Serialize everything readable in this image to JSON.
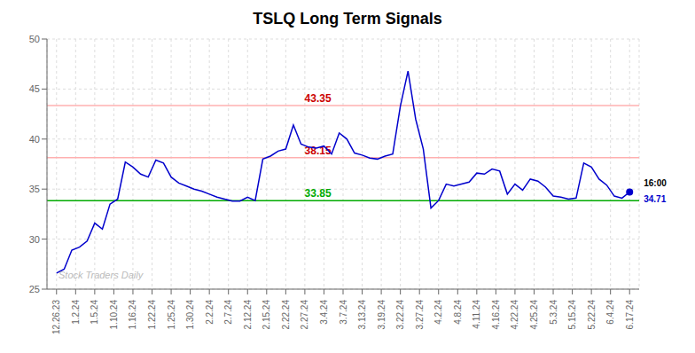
{
  "chart_data": {
    "type": "line",
    "title": "TSLQ Long Term Signals",
    "x": [
      0,
      0.4,
      0.8,
      1.2,
      1.6,
      2,
      2.4,
      2.8,
      3.2,
      3.6,
      4,
      4.4,
      4.8,
      5.2,
      5.6,
      6,
      6.4,
      6.8,
      7.2,
      7.6,
      8,
      8.4,
      8.8,
      9.2,
      9.6,
      10,
      10.4,
      10.8,
      11.2,
      11.6,
      12,
      12.4,
      12.8,
      13.2,
      13.6,
      14,
      14.4,
      14.8,
      15.2,
      15.6,
      16,
      16.4,
      16.8,
      17.2,
      17.6,
      18,
      18.4,
      18.8,
      19.2,
      19.6,
      20,
      20.4,
      20.8,
      21.2,
      21.6,
      22,
      22.4,
      22.8,
      23.2,
      23.6,
      24,
      24.4,
      24.8,
      25.2,
      25.6,
      26,
      26.4,
      26.8,
      27.2,
      27.6,
      28,
      28.4,
      28.8,
      29.2,
      29.6,
      30
    ],
    "values": [
      26.6,
      27.0,
      28.9,
      29.2,
      29.8,
      31.6,
      31.0,
      33.5,
      34.0,
      37.7,
      37.2,
      36.5,
      36.2,
      37.9,
      37.6,
      36.2,
      35.6,
      35.3,
      35.0,
      34.8,
      34.5,
      34.2,
      34.0,
      33.8,
      33.8,
      34.2,
      33.85,
      38.0,
      38.3,
      38.8,
      39.0,
      41.4,
      39.5,
      39.2,
      39.1,
      39.3,
      38.5,
      40.6,
      40.0,
      38.6,
      38.4,
      38.1,
      38.0,
      38.3,
      38.5,
      43.3,
      46.8,
      42.0,
      39.0,
      33.1,
      33.85,
      35.5,
      35.3,
      35.5,
      35.7,
      36.6,
      36.5,
      37.0,
      36.8,
      34.5,
      35.5,
      34.9,
      36.0,
      35.8,
      35.2,
      34.3,
      34.2,
      34.0,
      34.1,
      37.6,
      37.2,
      36.0,
      35.4,
      34.3,
      34.1,
      34.71
    ],
    "color": "#0000cc",
    "xlim": [
      -0.5,
      30.5
    ],
    "xticks": [
      {
        "value": 0,
        "label": "12.26.23"
      },
      {
        "value": 1,
        "label": "1.2.24"
      },
      {
        "value": 2,
        "label": "1.5.24"
      },
      {
        "value": 3,
        "label": "1.10.24"
      },
      {
        "value": 4,
        "label": "1.16.24"
      },
      {
        "value": 5,
        "label": "1.22.24"
      },
      {
        "value": 6,
        "label": "1.25.24"
      },
      {
        "value": 7,
        "label": "1.30.24"
      },
      {
        "value": 8,
        "label": "2.2.24"
      },
      {
        "value": 9,
        "label": "2.7.24"
      },
      {
        "value": 10,
        "label": "2.12.24"
      },
      {
        "value": 11,
        "label": "2.15.24"
      },
      {
        "value": 12,
        "label": "2.22.24"
      },
      {
        "value": 13,
        "label": "2.27.24"
      },
      {
        "value": 14,
        "label": "3.4.24"
      },
      {
        "value": 15,
        "label": "3.7.24"
      },
      {
        "value": 16,
        "label": "3.13.24"
      },
      {
        "value": 17,
        "label": "3.19.24"
      },
      {
        "value": 18,
        "label": "3.22.24"
      },
      {
        "value": 19,
        "label": "3.27.24"
      },
      {
        "value": 20,
        "label": "4.2.24"
      },
      {
        "value": 21,
        "label": "4.8.24"
      },
      {
        "value": 22,
        "label": "4.11.24"
      },
      {
        "value": 23,
        "label": "4.16.24"
      },
      {
        "value": 24,
        "label": "4.22.24"
      },
      {
        "value": 25,
        "label": "4.25.24"
      },
      {
        "value": 26,
        "label": "5.3.24"
      },
      {
        "value": 27,
        "label": "5.15.24"
      },
      {
        "value": 28,
        "label": "5.22.24"
      },
      {
        "value": 29,
        "label": "6.4.24"
      },
      {
        "value": 30,
        "label": "6.17.24"
      }
    ],
    "ylim": [
      25,
      50
    ],
    "yticks": [
      25,
      30,
      35,
      40,
      45,
      50
    ],
    "grid": true,
    "hlines": [
      {
        "value": 33.85,
        "label": "33.85",
        "color": "#00aa00",
        "label_color": "#00aa00"
      },
      {
        "value": 38.15,
        "label": "38.15",
        "color": "#ffb0b0",
        "label_color": "#cc0000"
      },
      {
        "value": 43.35,
        "label": "43.35",
        "color": "#ffb0b0",
        "label_color": "#cc0000"
      }
    ],
    "last_point": {
      "time": "16:00",
      "price": 34.71
    },
    "watermark": "Stock Traders Daily"
  }
}
